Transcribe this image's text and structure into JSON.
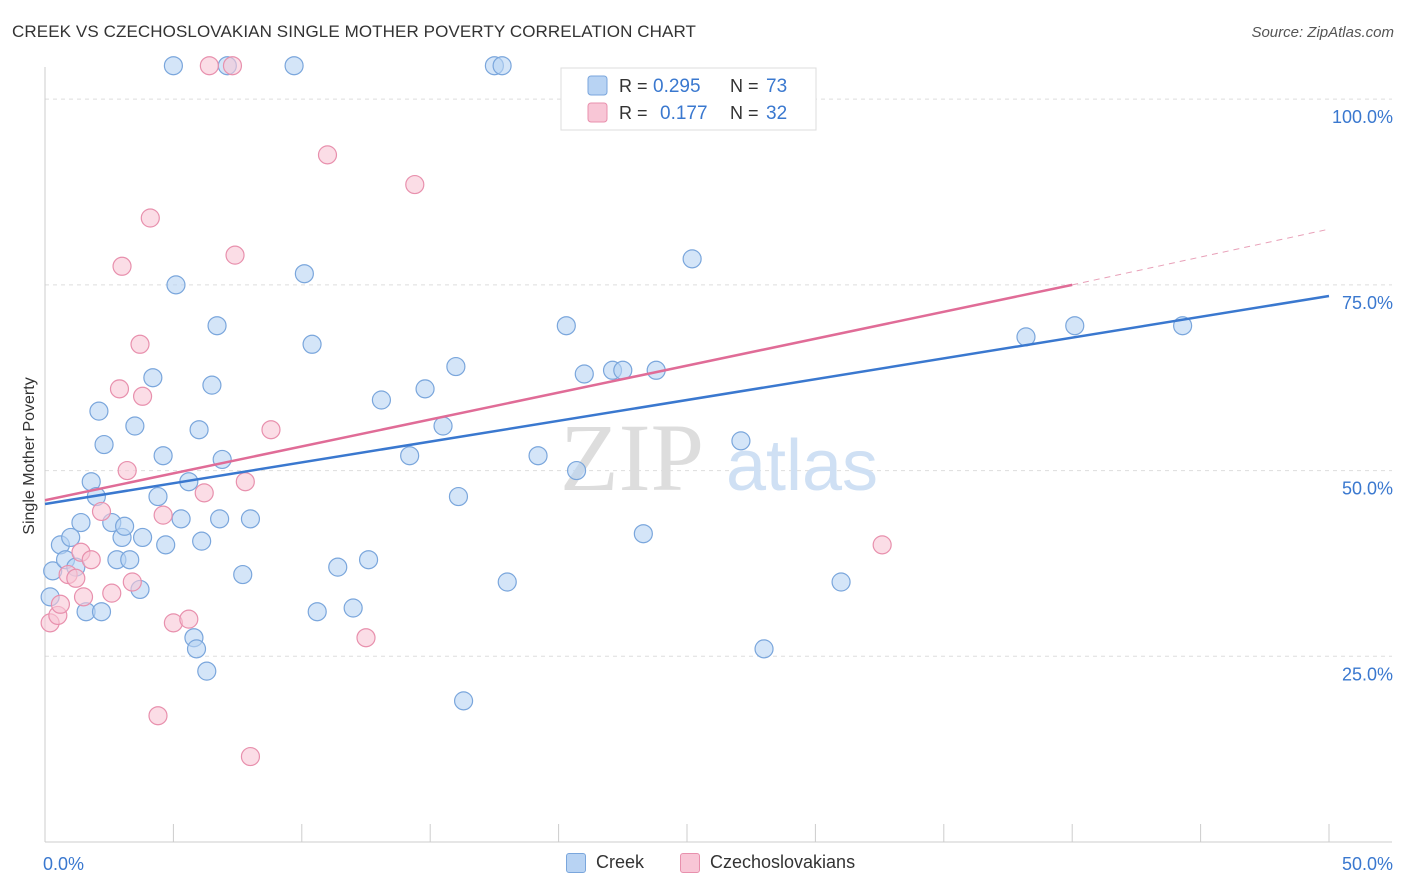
{
  "title": "CREEK VS CZECHOSLOVAKIAN SINGLE MOTHER POVERTY CORRELATION CHART",
  "source": "Source: ZipAtlas.com",
  "watermark": {
    "zip": "ZIP",
    "atlas": "atlas"
  },
  "colors": {
    "creek_fill": "#b8d3f3",
    "creek_stroke": "#7aa6dc",
    "creek_line": "#3a78cf",
    "czech_fill": "#f8c6d6",
    "czech_stroke": "#e890ad",
    "czech_line": "#e06c97",
    "tick_label": "#3a78cf",
    "grid": "#dddddd",
    "axis": "#cccccc"
  },
  "legend": {
    "r_label": "R =",
    "n_label": "N =",
    "rows": [
      {
        "series": "Creek",
        "r": "0.295",
        "n": "73"
      },
      {
        "series": "Czechoslovakians",
        "r": "0.177",
        "n": "32"
      }
    ]
  },
  "chart_data": {
    "type": "scatter",
    "title": "CREEK VS CZECHOSLOVAKIAN SINGLE MOTHER POVERTY CORRELATION CHART",
    "xlabel": "",
    "ylabel": "Single Mother Poverty",
    "xlim": [
      0,
      50
    ],
    "ylim": [
      0,
      105
    ],
    "x_tick_labels": [
      "0.0%",
      "50.0%"
    ],
    "y_ticks": [
      {
        "value": 25,
        "label": "25.0%"
      },
      {
        "value": 50,
        "label": "50.0%"
      },
      {
        "value": 75,
        "label": "75.0%"
      },
      {
        "value": 100,
        "label": "100.0%"
      }
    ],
    "grid": true,
    "legend_position": "bottom",
    "series": [
      {
        "name": "Creek",
        "r": 0.295,
        "n": 73,
        "trend": {
          "x0": 0,
          "y0": 45.5,
          "x1": 50,
          "y1": 73.5
        },
        "points": [
          [
            0.2,
            33.0
          ],
          [
            0.3,
            36.5
          ],
          [
            0.6,
            40.0
          ],
          [
            0.8,
            38.0
          ],
          [
            1.0,
            41.0
          ],
          [
            1.2,
            37.0
          ],
          [
            1.4,
            43.0
          ],
          [
            1.6,
            31.0
          ],
          [
            1.8,
            48.5
          ],
          [
            2.0,
            46.5
          ],
          [
            2.1,
            58.0
          ],
          [
            2.2,
            31.0
          ],
          [
            2.3,
            53.5
          ],
          [
            2.6,
            43.0
          ],
          [
            2.8,
            38.0
          ],
          [
            3.0,
            41.0
          ],
          [
            3.1,
            42.5
          ],
          [
            3.3,
            38.0
          ],
          [
            3.5,
            56.0
          ],
          [
            3.7,
            34.0
          ],
          [
            3.8,
            41.0
          ],
          [
            4.2,
            62.5
          ],
          [
            4.4,
            46.5
          ],
          [
            4.6,
            52.0
          ],
          [
            4.7,
            40.0
          ],
          [
            5.0,
            104.5
          ],
          [
            5.1,
            75.0
          ],
          [
            5.3,
            43.5
          ],
          [
            5.6,
            48.5
          ],
          [
            7.1,
            104.5
          ],
          [
            5.8,
            27.5
          ],
          [
            5.9,
            26.0
          ],
          [
            6.0,
            55.5
          ],
          [
            6.1,
            40.5
          ],
          [
            6.3,
            23.0
          ],
          [
            6.5,
            61.5
          ],
          [
            6.7,
            69.5
          ],
          [
            6.8,
            43.5
          ],
          [
            6.9,
            51.5
          ],
          [
            7.7,
            36.0
          ],
          [
            8.0,
            43.5
          ],
          [
            9.7,
            104.5
          ],
          [
            10.1,
            76.5
          ],
          [
            10.4,
            67.0
          ],
          [
            10.6,
            31.0
          ],
          [
            11.4,
            37.0
          ],
          [
            12.0,
            31.5
          ],
          [
            12.6,
            38.0
          ],
          [
            13.1,
            59.5
          ],
          [
            14.2,
            52.0
          ],
          [
            14.8,
            61.0
          ],
          [
            15.5,
            56.0
          ],
          [
            16.0,
            64.0
          ],
          [
            16.1,
            46.5
          ],
          [
            16.3,
            19.0
          ],
          [
            17.5,
            104.5
          ],
          [
            17.8,
            104.5
          ],
          [
            18.0,
            35.0
          ],
          [
            19.2,
            52.0
          ],
          [
            20.3,
            69.5
          ],
          [
            20.7,
            50.0
          ],
          [
            21.0,
            63.0
          ],
          [
            22.1,
            63.5
          ],
          [
            22.5,
            63.5
          ],
          [
            23.3,
            41.5
          ],
          [
            23.8,
            63.5
          ],
          [
            25.2,
            78.5
          ],
          [
            27.1,
            54.0
          ],
          [
            28.0,
            26.0
          ],
          [
            31.0,
            35.0
          ],
          [
            38.2,
            68.0
          ],
          [
            40.1,
            69.5
          ],
          [
            44.3,
            69.5
          ]
        ]
      },
      {
        "name": "Czechoslovakians",
        "r": 0.177,
        "n": 32,
        "trend": {
          "x0": 0,
          "y0": 46.0,
          "x1": 40,
          "y1": 75.0
        },
        "trend_dashed": {
          "x0": 40,
          "y0": 75.0,
          "x1": 50,
          "y1": 82.5
        },
        "points": [
          [
            0.2,
            29.5
          ],
          [
            0.5,
            30.5
          ],
          [
            0.6,
            32.0
          ],
          [
            0.9,
            36.0
          ],
          [
            1.2,
            35.5
          ],
          [
            1.4,
            39.0
          ],
          [
            1.5,
            33.0
          ],
          [
            1.8,
            38.0
          ],
          [
            2.2,
            44.5
          ],
          [
            2.6,
            33.5
          ],
          [
            2.9,
            61.0
          ],
          [
            3.2,
            50.0
          ],
          [
            3.4,
            35.0
          ],
          [
            3.7,
            67.0
          ],
          [
            3.8,
            60.0
          ],
          [
            4.1,
            84.0
          ],
          [
            4.4,
            17.0
          ],
          [
            4.6,
            44.0
          ],
          [
            5.0,
            29.5
          ],
          [
            5.6,
            30.0
          ],
          [
            6.2,
            47.0
          ],
          [
            6.4,
            104.5
          ],
          [
            7.3,
            104.5
          ],
          [
            7.4,
            79.0
          ],
          [
            7.8,
            48.5
          ],
          [
            8.0,
            11.5
          ],
          [
            8.8,
            55.5
          ],
          [
            11.0,
            92.5
          ],
          [
            12.5,
            27.5
          ],
          [
            14.4,
            88.5
          ],
          [
            3.0,
            77.5
          ],
          [
            32.6,
            40.0
          ]
        ]
      }
    ]
  }
}
